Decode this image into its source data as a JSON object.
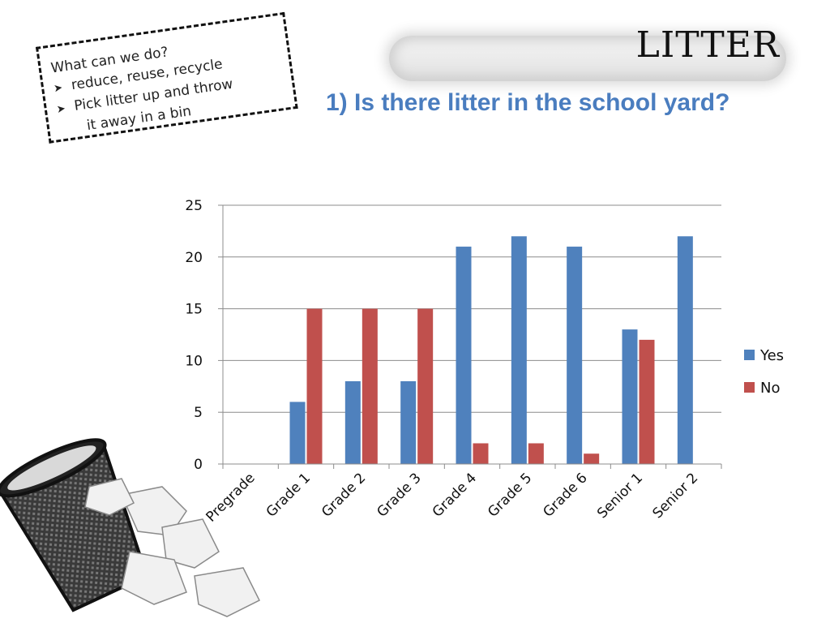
{
  "slide": {
    "title": "LITTER",
    "question": "1) Is there litter in the school yard?"
  },
  "note": {
    "heading": "What can we do?",
    "bullet_1": "reduce, reuse, recycle",
    "bullet_2_line_1": "Pick litter up and throw",
    "bullet_2_line_2": "it away in a bin",
    "bullet_icon": "arrow-bullet-icon"
  },
  "illustration": {
    "icon": "trash-bin-icon"
  },
  "colors": {
    "yes": "#4f81bd",
    "no": "#c0504d",
    "question": "#4a7dbf"
  },
  "chart_data": {
    "type": "bar",
    "title": "",
    "xlabel": "",
    "ylabel": "",
    "categories": [
      "Pregrade",
      "Grade 1",
      "Grade 2",
      "Grade 3",
      "Grade 4",
      "Grade 5",
      "Grade 6",
      "Senior 1",
      "Senior 2"
    ],
    "series": [
      {
        "name": "Yes",
        "values": [
          0,
          6,
          8,
          8,
          21,
          22,
          21,
          13,
          22
        ]
      },
      {
        "name": "No",
        "values": [
          0,
          15,
          15,
          15,
          2,
          2,
          1,
          12,
          0
        ]
      }
    ],
    "ylim": [
      0,
      25
    ],
    "yticks": [
      0,
      5,
      10,
      15,
      20,
      25
    ],
    "grid": "horizontal",
    "legend": "right"
  }
}
